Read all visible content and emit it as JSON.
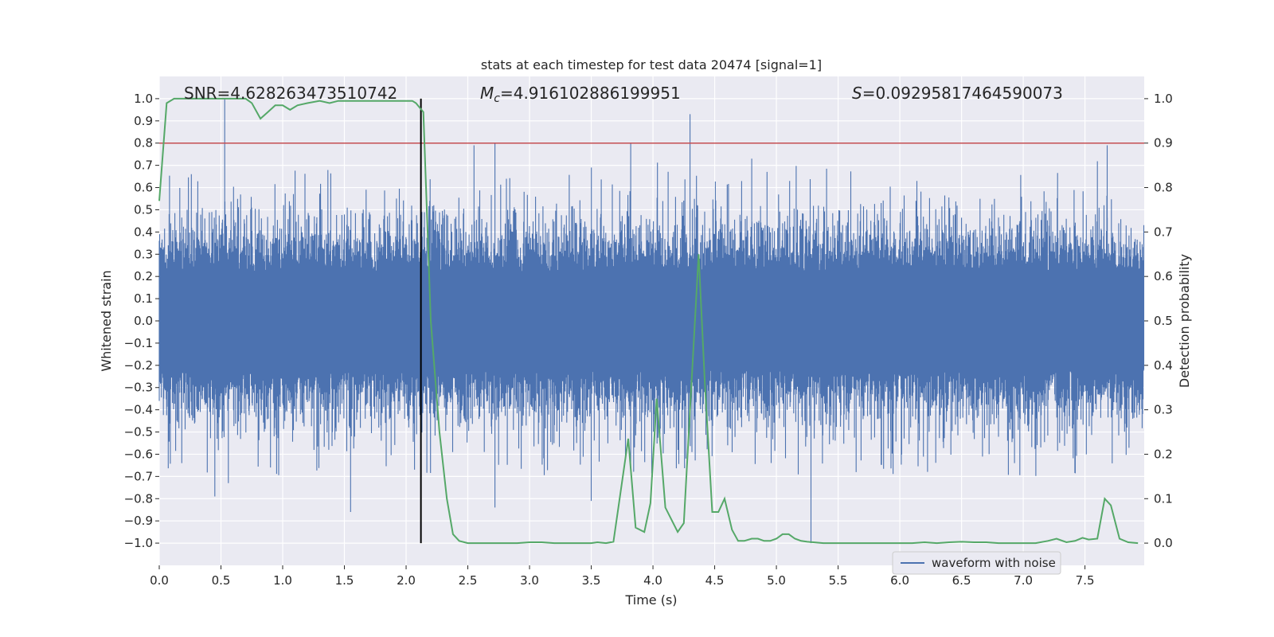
{
  "chart_data": {
    "type": "line",
    "title": "stats at each timestep for test data 20474 [signal=1]",
    "xlabel": "Time (s)",
    "ylabel": "Whitened strain",
    "y2label": "Detection probability",
    "xlim": [
      0.0,
      7.98
    ],
    "ylim": [
      -1.1,
      1.1
    ],
    "y2lim": [
      -0.05,
      1.05
    ],
    "xticks": [
      0.0,
      0.5,
      1.0,
      1.5,
      2.0,
      2.5,
      3.0,
      3.5,
      4.0,
      4.5,
      5.0,
      5.5,
      6.0,
      6.5,
      7.0,
      7.5
    ],
    "xtick_labels": [
      "0.0",
      "0.5",
      "1.0",
      "1.5",
      "2.0",
      "2.5",
      "3.0",
      "3.5",
      "4.0",
      "4.5",
      "5.0",
      "5.5",
      "6.0",
      "6.5",
      "7.0",
      "7.5"
    ],
    "yticks": [
      1.0,
      0.9,
      0.8,
      0.7,
      0.6,
      0.5,
      0.4,
      0.3,
      0.2,
      0.1,
      0.0,
      -0.1,
      -0.2,
      -0.3,
      -0.4,
      -0.5,
      -0.6,
      -0.7,
      -0.8,
      -0.9,
      -1.0
    ],
    "ytick_labels": [
      "1.0",
      "0.9",
      "0.8",
      "0.7",
      "0.6",
      "0.5",
      "0.4",
      "0.3",
      "0.2",
      "0.1",
      "0.0",
      "−0.1",
      "−0.2",
      "−0.3",
      "−0.4",
      "−0.5",
      "−0.6",
      "−0.7",
      "−0.8",
      "−0.9",
      "−1.0"
    ],
    "y2ticks": [
      1.0,
      0.9,
      0.8,
      0.7,
      0.6,
      0.5,
      0.4,
      0.3,
      0.2,
      0.1,
      0.0
    ],
    "y2tick_labels": [
      "1.0",
      "0.9",
      "0.8",
      "0.7",
      "0.6",
      "0.5",
      "0.4",
      "0.3",
      "0.2",
      "0.1",
      "0.0"
    ],
    "annotations": {
      "snr": "SNR=4.628263473510742",
      "mc_symbol": "M",
      "mc_sub": "c",
      "mc_value": "=4.916102886199951",
      "s_symbol": "S",
      "s_value": "=0.09295817464590073"
    },
    "threshold": {
      "value": 0.9,
      "axis": "right",
      "color": "#c44e52"
    },
    "vline": {
      "x": 2.12,
      "ymin": -1.0,
      "ymax": 1.0,
      "color": "#000000"
    },
    "legend": {
      "label": "waveform with noise",
      "placement": "lower-right"
    },
    "colors": {
      "waveform": "#4c72b0",
      "probability": "#55a868",
      "background": "#eaeaf2",
      "grid": "#ffffff"
    },
    "waveform": {
      "name": "waveform with noise",
      "description_of_envelope": "dense noise, amplitude roughly ±0.3 with spikes to ±0.7",
      "spikes": [
        [
          0.53,
          1.0
        ],
        [
          0.26,
          0.66
        ],
        [
          0.45,
          -0.79
        ],
        [
          0.56,
          -0.73
        ],
        [
          1.55,
          -0.86
        ],
        [
          2.55,
          0.79
        ],
        [
          2.72,
          0.8
        ],
        [
          2.72,
          -0.84
        ],
        [
          3.82,
          0.8
        ],
        [
          3.82,
          -0.68
        ],
        [
          4.3,
          0.93
        ],
        [
          5.28,
          -1.0
        ],
        [
          3.5,
          -0.81
        ],
        [
          4.8,
          0.73
        ],
        [
          7.68,
          0.79
        ]
      ]
    },
    "probability": {
      "name": "Detection probability",
      "x": [
        0.0,
        0.06,
        0.12,
        0.2,
        0.3,
        0.4,
        0.5,
        0.6,
        0.7,
        0.75,
        0.82,
        0.88,
        0.94,
        1.0,
        1.06,
        1.12,
        1.2,
        1.3,
        1.38,
        1.45,
        1.55,
        1.65,
        1.75,
        1.85,
        1.95,
        2.05,
        2.08,
        2.14,
        2.2,
        2.27,
        2.33,
        2.38,
        2.43,
        2.5,
        2.6,
        2.7,
        2.8,
        2.9,
        3.0,
        3.1,
        3.2,
        3.3,
        3.4,
        3.5,
        3.55,
        3.62,
        3.68,
        3.73,
        3.8,
        3.86,
        3.93,
        3.98,
        4.03,
        4.1,
        4.2,
        4.25,
        4.3,
        4.37,
        4.42,
        4.48,
        4.53,
        4.58,
        4.64,
        4.69,
        4.74,
        4.8,
        4.85,
        4.9,
        4.95,
        5.0,
        5.05,
        5.1,
        5.15,
        5.2,
        5.25,
        5.3,
        5.38,
        5.5,
        5.6,
        5.7,
        5.8,
        5.9,
        6.0,
        6.1,
        6.2,
        6.3,
        6.4,
        6.5,
        6.6,
        6.7,
        6.8,
        6.9,
        7.0,
        7.1,
        7.2,
        7.27,
        7.35,
        7.42,
        7.48,
        7.53,
        7.6,
        7.66,
        7.71,
        7.78,
        7.85,
        7.93
      ],
      "y": [
        0.77,
        0.99,
        1.0,
        1.0,
        1.0,
        1.0,
        1.0,
        1.0,
        1.0,
        0.99,
        0.955,
        0.97,
        0.985,
        0.985,
        0.975,
        0.985,
        0.99,
        0.995,
        0.99,
        0.995,
        0.995,
        0.995,
        0.995,
        0.995,
        0.995,
        0.995,
        0.99,
        0.97,
        0.5,
        0.25,
        0.1,
        0.02,
        0.005,
        0.0,
        0.0,
        0.0,
        0.0,
        0.0,
        0.002,
        0.002,
        0.0,
        0.0,
        0.0,
        0.0,
        0.002,
        0.0,
        0.003,
        0.1,
        0.235,
        0.035,
        0.025,
        0.09,
        0.325,
        0.08,
        0.025,
        0.045,
        0.3,
        0.65,
        0.36,
        0.07,
        0.07,
        0.1,
        0.03,
        0.005,
        0.005,
        0.01,
        0.01,
        0.005,
        0.005,
        0.01,
        0.02,
        0.02,
        0.01,
        0.005,
        0.003,
        0.002,
        0.0,
        0.0,
        0.0,
        0.0,
        0.0,
        0.0,
        0.0,
        0.0,
        0.002,
        0.0,
        0.002,
        0.003,
        0.002,
        0.002,
        0.0,
        0.0,
        0.0,
        0.0,
        0.005,
        0.01,
        0.002,
        0.005,
        0.012,
        0.008,
        0.01,
        0.1,
        0.085,
        0.01,
        0.002,
        0.0
      ]
    }
  }
}
